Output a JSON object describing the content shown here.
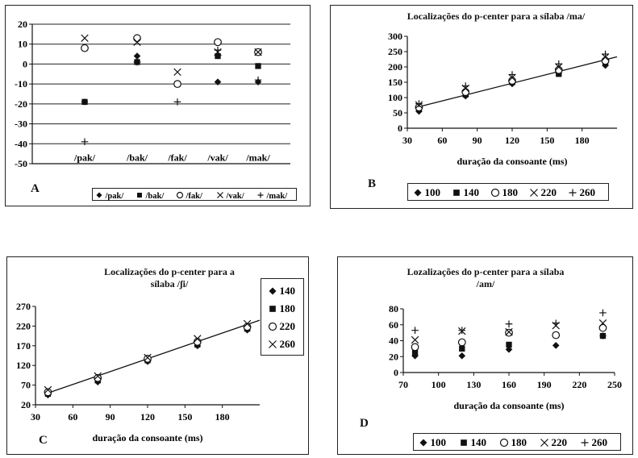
{
  "chart_data": [
    {
      "id": "A",
      "type": "scatter",
      "panel_label": "A",
      "title": "",
      "xlabel": "",
      "ylabel": "",
      "categories": [
        "/pak/",
        "/bak/",
        "/fak/",
        "/vak/",
        "/mak/"
      ],
      "ylim": [
        -50,
        20
      ],
      "yticks": [
        20,
        10,
        0,
        -10,
        -20,
        -30,
        -40,
        -50
      ],
      "grid": true,
      "legend_position": "bottom-right",
      "series": [
        {
          "name": "/pak/",
          "marker": "diamond",
          "values": [
            -19,
            4,
            -10,
            -9,
            -9
          ]
        },
        {
          "name": "/bak/",
          "marker": "square",
          "values": [
            -19,
            1,
            -10,
            4,
            -1
          ]
        },
        {
          "name": "/fak/",
          "marker": "circle",
          "values": [
            8,
            13,
            -10,
            11,
            6
          ]
        },
        {
          "name": "/vak/",
          "marker": "x",
          "values": [
            13,
            11,
            -4,
            6,
            6
          ]
        },
        {
          "name": "/mak/",
          "marker": "plus",
          "values": [
            -39,
            1,
            -19,
            7,
            -8
          ]
        }
      ]
    },
    {
      "id": "B",
      "type": "scatter",
      "panel_label": "B",
      "title": "Localizações do p-center para a sílaba  /ma/",
      "xlabel": "duração da consoante (ms)",
      "ylabel": "",
      "x": [
        40,
        80,
        120,
        160,
        200
      ],
      "xlim": [
        30,
        210
      ],
      "xticks": [
        30,
        60,
        90,
        120,
        150,
        180
      ],
      "ylim": [
        0,
        300
      ],
      "yticks": [
        300,
        250,
        200,
        150,
        100,
        50,
        0
      ],
      "trendline": [
        [
          40,
          70
        ],
        [
          210,
          233
        ]
      ],
      "legend_position": "bottom",
      "series": [
        {
          "name": "100",
          "marker": "diamond",
          "values": [
            55,
            105,
            145,
            180,
            205
          ]
        },
        {
          "name": "140",
          "marker": "square",
          "values": [
            62,
            110,
            150,
            177,
            212
          ]
        },
        {
          "name": "180",
          "marker": "circle",
          "values": [
            68,
            118,
            155,
            190,
            220
          ]
        },
        {
          "name": "220",
          "marker": "x",
          "values": [
            76,
            130,
            165,
            200,
            232
          ]
        },
        {
          "name": "260",
          "marker": "plus",
          "values": [
            80,
            138,
            175,
            210,
            242
          ]
        }
      ]
    },
    {
      "id": "C",
      "type": "scatter",
      "panel_label": "C",
      "title": "Localizações do p-center para a sílaba /ʃi/",
      "xlabel": "duração da consoante (ms)",
      "ylabel": "",
      "x": [
        40,
        80,
        120,
        160,
        200
      ],
      "xlim": [
        30,
        210
      ],
      "xticks": [
        30,
        60,
        90,
        120,
        150,
        180
      ],
      "ylim": [
        20,
        270
      ],
      "yticks": [
        270,
        220,
        170,
        120,
        70,
        20
      ],
      "trendline": [
        [
          40,
          50
        ],
        [
          210,
          235
        ]
      ],
      "legend_position": "right",
      "series": [
        {
          "name": "140",
          "marker": "diamond",
          "values": [
            45,
            78,
            130,
            170,
            210
          ]
        },
        {
          "name": "180",
          "marker": "square",
          "values": [
            48,
            82,
            133,
            173,
            213
          ]
        },
        {
          "name": "220",
          "marker": "circle",
          "values": [
            52,
            88,
            137,
            180,
            218
          ]
        },
        {
          "name": "260",
          "marker": "x",
          "values": [
            58,
            93,
            140,
            188,
            226
          ]
        }
      ]
    },
    {
      "id": "D",
      "type": "scatter",
      "panel_label": "D",
      "title": "Lozalizações do p-center para a sílaba  /am/",
      "xlabel": "duração da consoante (ms)",
      "ylabel": "",
      "x": [
        80,
        120,
        160,
        200,
        240
      ],
      "xlim": [
        70,
        250
      ],
      "xticks": [
        70,
        100,
        130,
        160,
        190,
        220,
        250
      ],
      "ylim": [
        0,
        80
      ],
      "yticks": [
        80,
        60,
        40,
        20,
        0
      ],
      "legend_position": "bottom",
      "series": [
        {
          "name": "100",
          "marker": "diamond",
          "values": [
            21,
            21,
            29,
            34,
            46
          ]
        },
        {
          "name": "140",
          "marker": "square",
          "values": [
            25,
            30,
            35,
            47,
            46
          ]
        },
        {
          "name": "180",
          "marker": "circle",
          "values": [
            32,
            38,
            50,
            47,
            56
          ]
        },
        {
          "name": "220",
          "marker": "x",
          "values": [
            41,
            52,
            51,
            59,
            62
          ]
        },
        {
          "name": "260",
          "marker": "plus",
          "values": [
            53,
            53,
            61,
            62,
            75
          ]
        }
      ]
    }
  ]
}
